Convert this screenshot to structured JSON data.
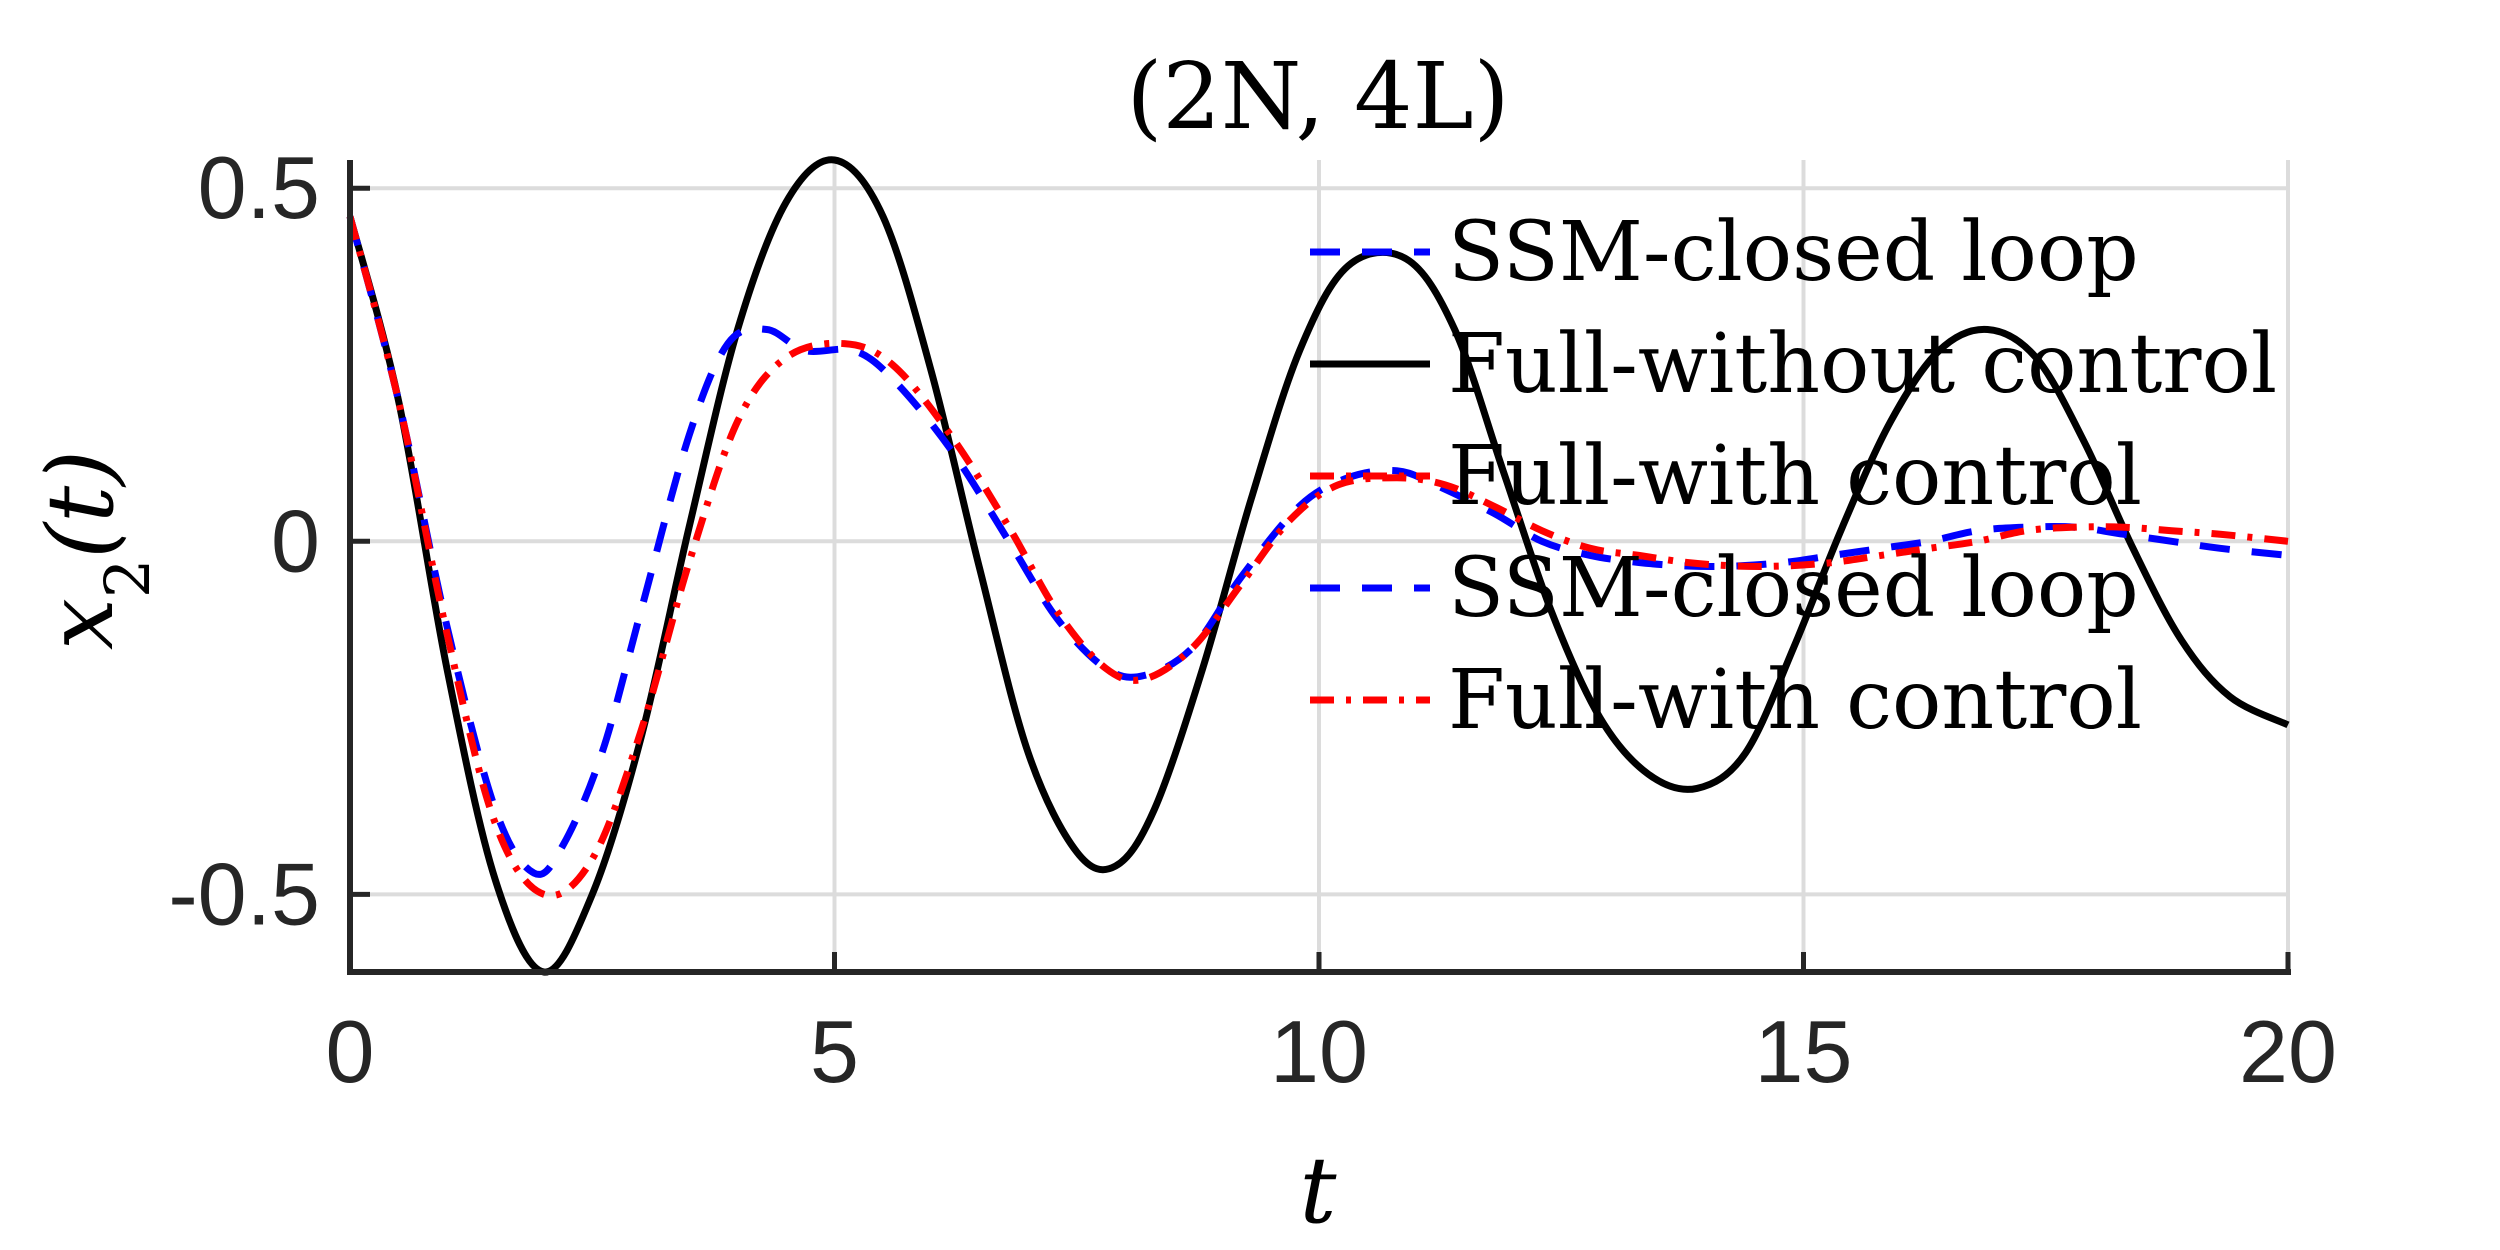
{
  "chart_data": {
    "type": "line",
    "title": "(2N, 4L)",
    "xlabel": "t",
    "ylabel": {
      "base": "x",
      "sub": "2",
      "arg": "(t)"
    },
    "xlim": [
      0,
      20
    ],
    "ylim": [
      -0.61,
      0.54
    ],
    "xticks": [
      0,
      5,
      10,
      15,
      20
    ],
    "xtick_labels": [
      "0",
      "5",
      "10",
      "15",
      "20"
    ],
    "yticks": [
      -0.5,
      0,
      0.5
    ],
    "ytick_labels": [
      "-0.5",
      "0",
      "0.5"
    ],
    "grid": true,
    "legend_position": "upper-right (inside)",
    "series": [
      {
        "name": "SSM-closed loop",
        "color": "#0000ff",
        "style": "dashed",
        "x": [
          0,
          0.5,
          1,
          1.5,
          1.9,
          2.2,
          2.6,
          3,
          3.5,
          3.9,
          4.3,
          4.7,
          5.2,
          5.6,
          6.2,
          6.8,
          7.3,
          7.8,
          8.2,
          8.7,
          9.2,
          9.8,
          10.3,
          10.8,
          11.2,
          11.8,
          12.3,
          12.8,
          13.3,
          13.8,
          14.3,
          14.8,
          15.3,
          15.8,
          16.3,
          16.8,
          17.3,
          17.8,
          18.3,
          18.8,
          19.3,
          20
        ],
        "y": [
          0.46,
          0.2,
          -0.12,
          -0.38,
          -0.47,
          -0.43,
          -0.3,
          -0.1,
          0.15,
          0.28,
          0.3,
          0.27,
          0.27,
          0.23,
          0.13,
          0.0,
          -0.11,
          -0.18,
          -0.19,
          -0.15,
          -0.05,
          0.05,
          0.09,
          0.1,
          0.08,
          0.04,
          0.0,
          -0.02,
          -0.03,
          -0.035,
          -0.035,
          -0.03,
          -0.02,
          -0.01,
          0.0,
          0.015,
          0.02,
          0.02,
          0.01,
          0.0,
          -0.01,
          -0.02
        ]
      },
      {
        "name": "Full-without control",
        "color": "#000000",
        "style": "solid",
        "x": [
          0,
          0.5,
          1,
          1.5,
          2,
          2.5,
          3,
          3.5,
          4,
          4.5,
          5,
          5.5,
          6,
          6.5,
          7,
          7.5,
          7.9,
          8.3,
          8.8,
          9.3,
          9.8,
          10.3,
          10.9,
          11.4,
          11.9,
          12.4,
          12.9,
          13.4,
          13.9,
          14.4,
          14.9,
          15.4,
          15.9,
          16.4,
          16.9,
          17.4,
          17.9,
          18.4,
          18.9,
          19.4,
          20
        ],
        "y": [
          0.46,
          0.2,
          -0.18,
          -0.48,
          -0.61,
          -0.5,
          -0.28,
          0.02,
          0.3,
          0.48,
          0.54,
          0.46,
          0.24,
          -0.04,
          -0.3,
          -0.44,
          -0.46,
          -0.38,
          -0.18,
          0.06,
          0.27,
          0.39,
          0.4,
          0.3,
          0.1,
          -0.1,
          -0.25,
          -0.33,
          -0.35,
          -0.3,
          -0.15,
          0.02,
          0.17,
          0.27,
          0.3,
          0.26,
          0.14,
          -0.01,
          -0.14,
          -0.22,
          -0.26
        ]
      },
      {
        "name": "Full-with control",
        "color": "#ff0000",
        "style": "dashdot",
        "x": [
          0,
          0.5,
          1,
          1.5,
          2,
          2.5,
          3,
          3.5,
          4,
          4.5,
          5.1,
          5.6,
          6.2,
          6.8,
          7.3,
          7.8,
          8.2,
          8.7,
          9.2,
          9.7,
          10.2,
          10.8,
          11.3,
          11.8,
          12.3,
          12.8,
          13.3,
          13.8,
          14.3,
          14.8,
          15.3,
          15.8,
          16.3,
          16.8,
          17.3,
          17.8,
          18.3,
          18.8,
          19.3,
          20
        ],
        "y": [
          0.46,
          0.2,
          -0.13,
          -0.4,
          -0.5,
          -0.45,
          -0.27,
          -0.03,
          0.17,
          0.26,
          0.28,
          0.25,
          0.15,
          0.02,
          -0.1,
          -0.18,
          -0.195,
          -0.15,
          -0.06,
          0.03,
          0.08,
          0.09,
          0.08,
          0.05,
          0.015,
          -0.01,
          -0.02,
          -0.03,
          -0.035,
          -0.035,
          -0.03,
          -0.02,
          -0.01,
          0.0,
          0.015,
          0.02,
          0.02,
          0.015,
          0.01,
          0.0
        ]
      }
    ],
    "legend_entries": [
      {
        "label": "SSM-closed loop",
        "color": "#0000ff",
        "style": "dashed"
      },
      {
        "label": "Full-without control",
        "color": "#000000",
        "style": "solid"
      },
      {
        "label": "Full-with control",
        "color": "#ff0000",
        "style": "dashdot"
      },
      {
        "label": "SSM-closed loop",
        "color": "#0000ff",
        "style": "dashed"
      },
      {
        "label": "Full-with control",
        "color": "#ff0000",
        "style": "dashdot"
      }
    ]
  }
}
